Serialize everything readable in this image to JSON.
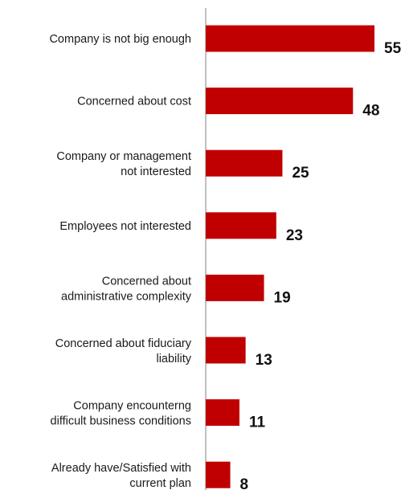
{
  "chart_data": {
    "type": "bar",
    "orientation": "horizontal",
    "categories": [
      [
        "Company is not big enough"
      ],
      [
        "Concerned about cost"
      ],
      [
        "Company or management",
        "not interested"
      ],
      [
        "Employees not interested"
      ],
      [
        "Concerned about",
        "administrative complexity"
      ],
      [
        "Concerned about fiduciary",
        "liability"
      ],
      [
        "Company encounterng",
        "difficult business conditions"
      ],
      [
        "Already have/Satisfied with",
        "current plan"
      ]
    ],
    "values": [
      55,
      48,
      25,
      23,
      19,
      13,
      11,
      8
    ],
    "data_labels": [
      "55",
      "48",
      "25",
      "23",
      "19",
      "13",
      "11",
      "8"
    ],
    "xlim": [
      0,
      55
    ],
    "bar_color": "#c00000",
    "axis_color": "#808080",
    "grid": false,
    "legend": "none"
  }
}
